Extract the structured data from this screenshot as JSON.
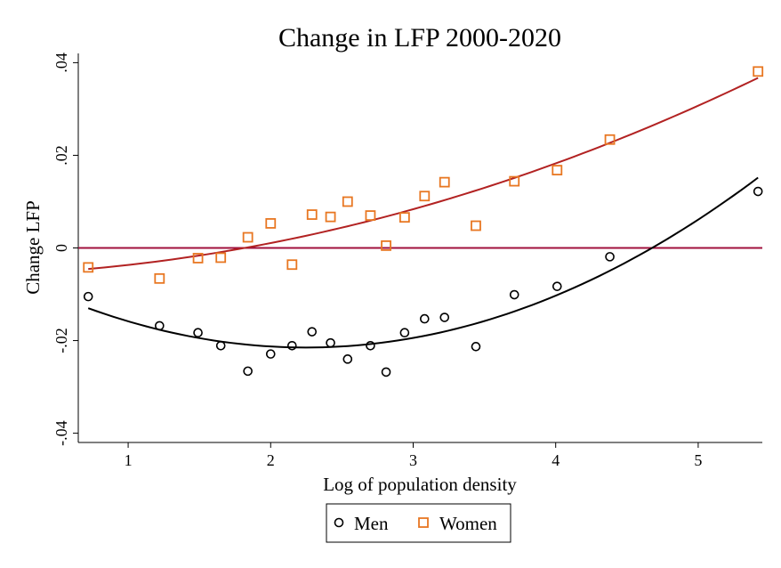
{
  "chart_data": {
    "type": "scatter",
    "title": "Change in LFP 2000-2020",
    "xlabel": "Log of population density",
    "ylabel": "Change LFP",
    "xlim": [
      0.65,
      5.45
    ],
    "ylim": [
      -0.042,
      0.042
    ],
    "x_ticks": [
      1,
      2,
      3,
      4,
      5
    ],
    "x_tick_labels": [
      "1",
      "2",
      "3",
      "4",
      "5"
    ],
    "y_ticks": [
      -0.04,
      -0.02,
      0,
      0.02,
      0.04
    ],
    "y_tick_labels": [
      "-.04",
      "-.02",
      "0",
      ".02",
      ".04"
    ],
    "grid": false,
    "reference_line": {
      "y": 0,
      "color": "#a0103c"
    },
    "legend": {
      "placement": "bottom-center"
    },
    "series": [
      {
        "name": "Men",
        "marker": "circle",
        "color": "#000000",
        "fit_color": "#000000",
        "x": [
          0.72,
          1.22,
          1.49,
          1.65,
          1.84,
          2.0,
          2.15,
          2.29,
          2.42,
          2.54,
          2.7,
          2.81,
          2.94,
          3.08,
          3.22,
          3.44,
          3.71,
          4.01,
          4.38,
          5.42
        ],
        "y": [
          -0.0105,
          -0.0168,
          -0.0183,
          -0.0211,
          -0.0266,
          -0.0229,
          -0.0211,
          -0.0181,
          -0.0205,
          -0.024,
          -0.0211,
          -0.0268,
          -0.0183,
          -0.0153,
          -0.015,
          -0.0213,
          -0.0101,
          -0.0083,
          -0.0019,
          0.0122
        ]
      },
      {
        "name": "Women",
        "marker": "square",
        "color": "#e87722",
        "fit_color": "#b22222",
        "x": [
          0.72,
          1.22,
          1.49,
          1.65,
          1.84,
          2.0,
          2.15,
          2.29,
          2.42,
          2.54,
          2.7,
          2.81,
          2.94,
          3.08,
          3.22,
          3.44,
          3.71,
          4.01,
          4.38,
          5.42
        ],
        "y": [
          -0.0042,
          -0.0066,
          -0.0022,
          -0.0021,
          0.0023,
          0.0053,
          -0.0036,
          0.0072,
          0.0067,
          0.01,
          0.007,
          0.0005,
          0.0066,
          0.0112,
          0.0142,
          0.0048,
          0.0144,
          0.0168,
          0.0234,
          0.0381
        ]
      }
    ]
  }
}
